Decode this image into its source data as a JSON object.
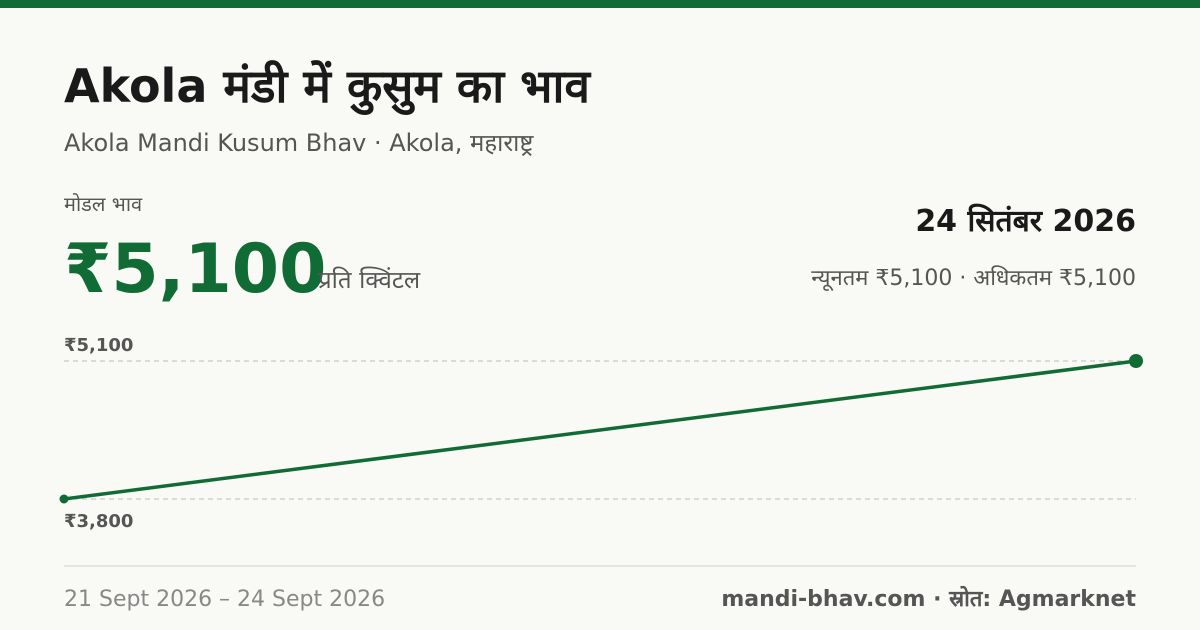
{
  "header": {
    "title": "Akola मंडी में कुसुम का भाव",
    "subtitle": "Akola Mandi Kusum Bhav · Akola, महाराष्ट्र"
  },
  "price": {
    "label": "मोडल भाव",
    "value": "₹5,100",
    "unit": "प्रति क्विंटल",
    "date": "24 सितंबर 2026",
    "range": "न्यूनतम ₹5,100 · अधिकतम ₹5,100"
  },
  "chart_data": {
    "type": "line",
    "values": [
      3800,
      5100
    ],
    "color": "#116b35",
    "ylim": [
      3800,
      5100
    ],
    "yticks": [
      {
        "value": 3800,
        "label": "₹3,800"
      },
      {
        "value": 5100,
        "label": "₹5,100"
      }
    ],
    "grid": true
  },
  "footer": {
    "date_range": "21 Sept 2026 – 24 Sept 2026",
    "source": "mandi-bhav.com · स्रोत: Agmarknet"
  }
}
